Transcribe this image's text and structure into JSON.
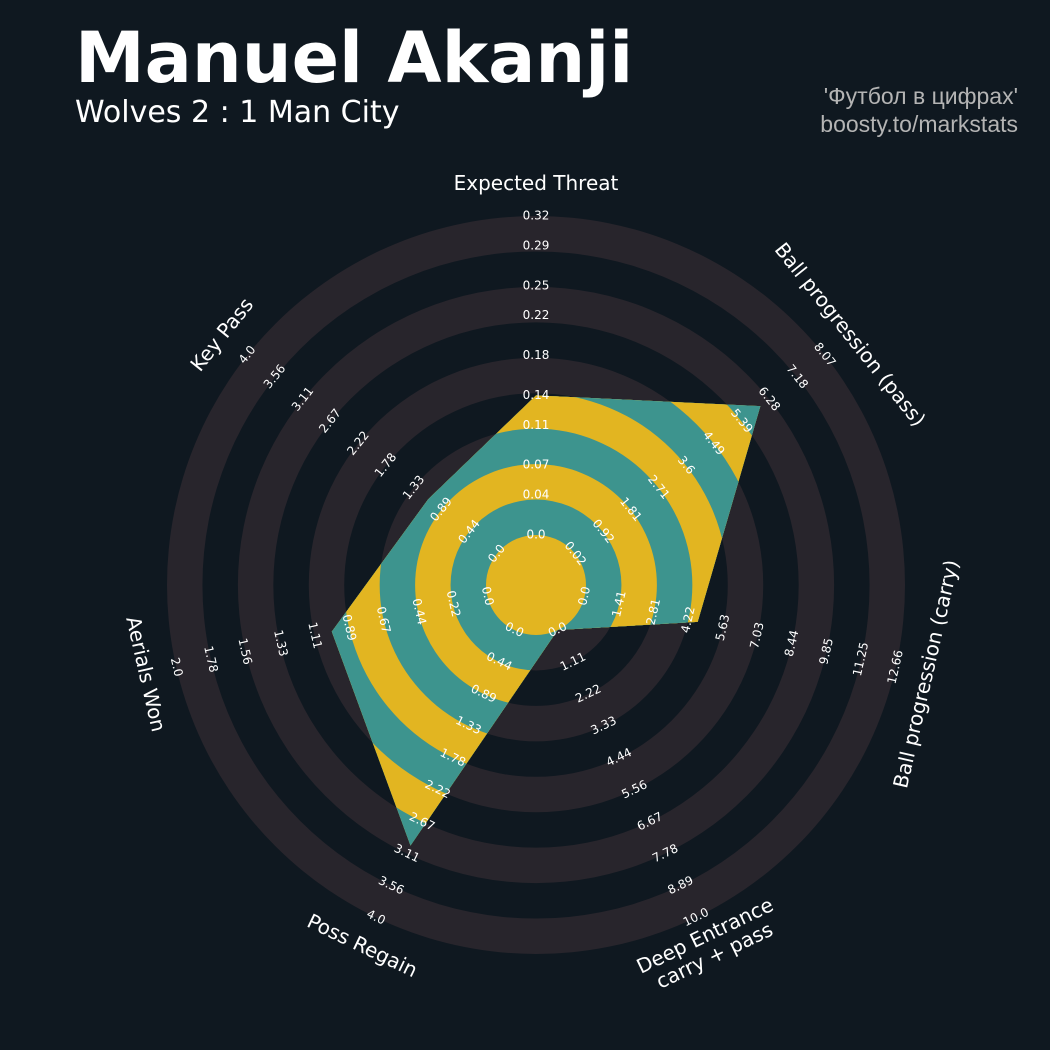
{
  "chart_data": {
    "type": "radar",
    "title": "Manuel Akanji",
    "subtitle": "Wolves 2 : 1 Man City",
    "credits": [
      "'Футбол в цифрах'",
      "boosty.to/markstats"
    ],
    "categories": [
      [
        "Expected Threat"
      ],
      [
        "Ball progression (pass)"
      ],
      [
        "Ball progression (carry)"
      ],
      [
        "Deep Entrance",
        "carry + pass"
      ],
      [
        "Poss Regain"
      ],
      [
        "Aerials Won"
      ],
      [
        "Key Pass"
      ]
    ],
    "values": [
      0.14,
      6.0,
      4.6,
      0.0,
      3.0,
      1.0,
      1.1
    ],
    "color": "#3d948e",
    "alt_color": "#e2b521",
    "ring_colors": [
      "#0f1820",
      "#28252c"
    ],
    "ranges": [
      [
        0.0,
        0.32
      ],
      [
        0.02,
        8.07
      ],
      [
        0.0,
        12.66
      ],
      [
        0.0,
        10.0
      ],
      [
        0.0,
        4.0
      ],
      [
        0.0,
        2.0
      ],
      [
        0.0,
        4.0
      ]
    ],
    "ticks": [
      [
        {
          "value": 0,
          "label": "0.0"
        },
        0.04,
        0.07,
        0.11,
        0.14,
        0.18,
        0.22,
        0.25,
        0.29,
        0.32
      ],
      [
        0.02,
        0.92,
        1.81,
        2.71,
        3.6,
        4.49,
        5.39,
        6.28,
        7.18,
        8.07
      ],
      [
        {
          "value": 0,
          "label": "0.0"
        },
        1.41,
        2.81,
        4.22,
        5.63,
        7.03,
        8.44,
        9.85,
        11.25,
        12.66
      ],
      [
        {
          "value": 0,
          "label": "0.0"
        },
        1.11,
        2.22,
        3.33,
        4.44,
        5.56,
        6.67,
        7.78,
        8.89,
        {
          "value": 10,
          "label": "10.0"
        }
      ],
      [
        {
          "value": 0,
          "label": "0.0"
        },
        0.44,
        0.89,
        1.33,
        1.78,
        2.22,
        2.67,
        3.11,
        3.56,
        {
          "value": 4,
          "label": "4.0"
        }
      ],
      [
        {
          "value": 0,
          "label": "0.0"
        },
        0.22,
        0.44,
        0.67,
        0.89,
        1.11,
        1.33,
        1.56,
        1.78,
        {
          "value": 2,
          "label": "2.0"
        }
      ],
      [
        {
          "value": 0,
          "label": "0.0"
        },
        0.44,
        0.89,
        1.33,
        1.78,
        2.22,
        2.67,
        3.11,
        3.56,
        {
          "value": 4,
          "label": "4.0"
        }
      ]
    ]
  }
}
